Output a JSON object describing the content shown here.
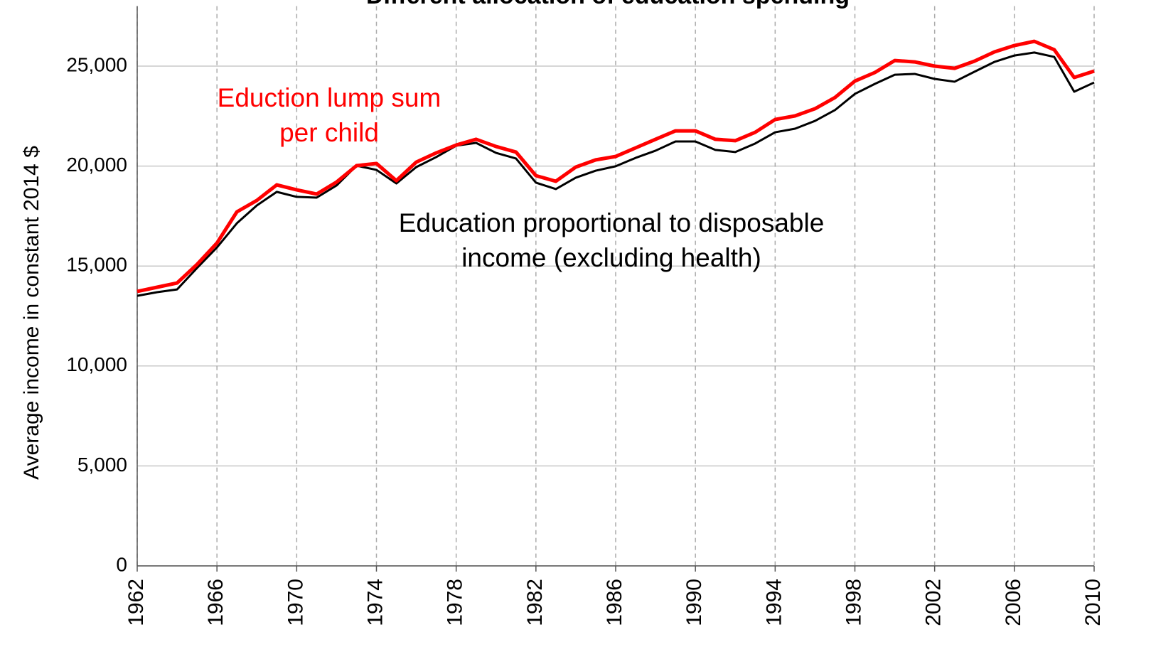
{
  "chart_data": {
    "type": "line",
    "title": "Different allocation of education spending",
    "y_label": "Average income in constant 2014 $",
    "x": [
      1962,
      1963,
      1964,
      1965,
      1966,
      1967,
      1968,
      1969,
      1970,
      1971,
      1972,
      1973,
      1974,
      1975,
      1976,
      1977,
      1978,
      1979,
      1980,
      1981,
      1982,
      1983,
      1984,
      1985,
      1986,
      1987,
      1988,
      1989,
      1990,
      1991,
      1992,
      1993,
      1994,
      1995,
      1996,
      1997,
      1998,
      1999,
      2000,
      2001,
      2002,
      2003,
      2004,
      2005,
      2006,
      2007,
      2008,
      2009,
      2010
    ],
    "series": [
      {
        "name": "Education proportional to disposable income (excluding health)",
        "color": "#000000",
        "values": [
          13510,
          13690,
          13830,
          14900,
          15930,
          17140,
          18030,
          18710,
          18460,
          18420,
          19030,
          20020,
          19810,
          19130,
          19950,
          20450,
          21020,
          21160,
          20660,
          20380,
          19170,
          18850,
          19420,
          19770,
          19990,
          20410,
          20770,
          21230,
          21230,
          20810,
          20700,
          21130,
          21690,
          21870,
          22260,
          22800,
          23610,
          24110,
          24570,
          24610,
          24360,
          24220,
          24720,
          25210,
          25530,
          25680,
          25460,
          23720,
          24180
        ]
      },
      {
        "name": "Eduction lump sum per child",
        "color": "#ff0000",
        "values": [
          13730,
          13940,
          14150,
          15080,
          16150,
          17710,
          18280,
          19060,
          18810,
          18600,
          19200,
          20020,
          20130,
          19270,
          20200,
          20660,
          21050,
          21340,
          20980,
          20700,
          19520,
          19240,
          19950,
          20310,
          20480,
          20910,
          21340,
          21760,
          21760,
          21340,
          21270,
          21690,
          22330,
          22510,
          22870,
          23430,
          24250,
          24680,
          25280,
          25210,
          25000,
          24890,
          25250,
          25710,
          26030,
          26240,
          25820,
          24430,
          24750
        ]
      }
    ],
    "annotations": [
      {
        "lines": [
          "Eduction lump sum",
          "per child"
        ],
        "color": "#ff0000"
      },
      {
        "lines": [
          "Education proportional to disposable",
          "income (excluding health)"
        ],
        "color": "#000000"
      }
    ],
    "xlim": [
      1962,
      2010
    ],
    "xticks": [
      1962,
      1966,
      1970,
      1974,
      1978,
      1982,
      1986,
      1990,
      1994,
      1998,
      2002,
      2006,
      2010
    ],
    "ylim": [
      0,
      28000
    ],
    "yticks": [
      0,
      {
        "value": 5000,
        "label": "5,000"
      },
      {
        "value": 10000,
        "label": "10,000"
      },
      {
        "value": 15000,
        "label": "15,000"
      },
      {
        "value": 20000,
        "label": "20,000"
      },
      {
        "value": 25000,
        "label": "25,000"
      }
    ],
    "grid": true
  }
}
